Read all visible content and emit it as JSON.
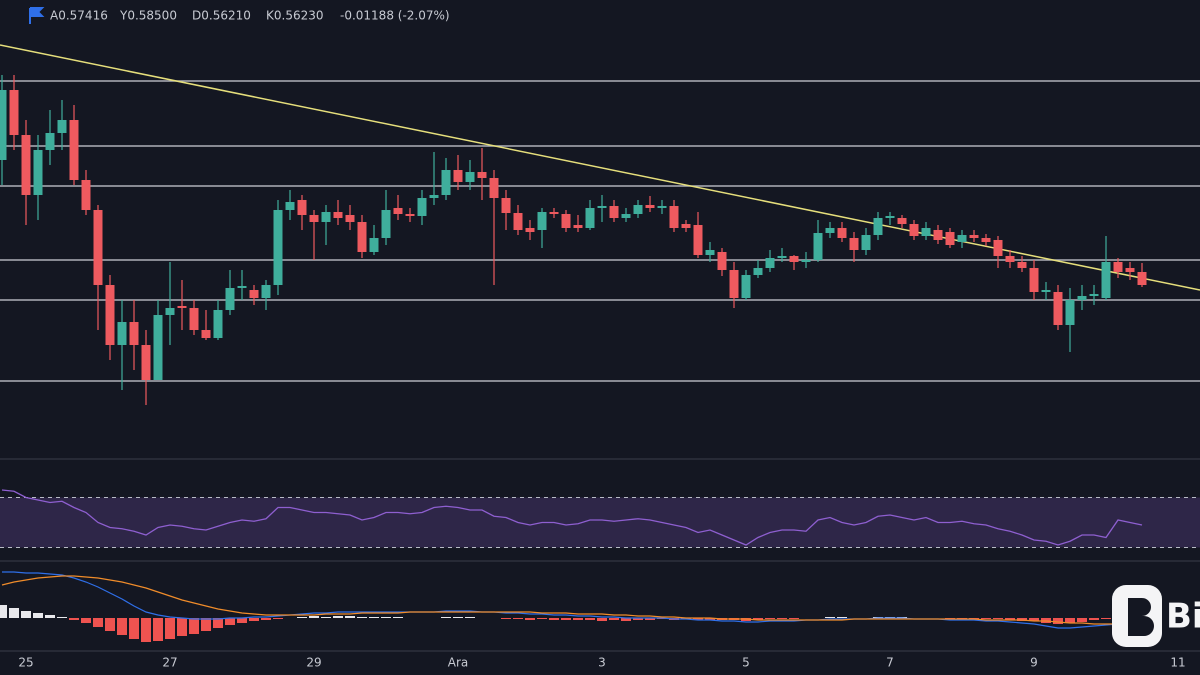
{
  "chart_data": [
    {
      "type": "candlestick",
      "header": [
        "A0.57416",
        "Y0.58500",
        "D0.56210",
        "K0.56230",
        "-0.01188 (-2.07%)"
      ],
      "watermark": "Bi",
      "categories": [
        null,
        null,
        "25",
        null,
        null,
        null,
        null,
        null,
        null,
        null,
        null,
        null,
        null,
        null,
        "27",
        null,
        null,
        null,
        null,
        null,
        null,
        null,
        null,
        null,
        null,
        null,
        "29",
        null,
        null,
        null,
        null,
        null,
        null,
        null,
        null,
        null,
        null,
        null,
        "Ara",
        null,
        null,
        null,
        null,
        null,
        null,
        null,
        null,
        null,
        null,
        null,
        "3",
        null,
        null,
        null,
        null,
        null,
        null,
        null,
        null,
        null,
        null,
        null,
        "5",
        null,
        null,
        null,
        null,
        null,
        null,
        null,
        null,
        null,
        null,
        null,
        "7",
        null,
        null,
        null,
        null,
        null,
        null,
        null,
        null,
        null,
        null,
        null,
        "9",
        null,
        null,
        null,
        null,
        null,
        null,
        null,
        null,
        null,
        null,
        null,
        "11"
      ],
      "open": [
        0.7,
        0.77,
        0.725,
        0.665,
        0.71,
        0.727,
        0.74,
        0.68,
        0.65,
        0.575,
        0.515,
        0.538,
        0.515,
        0.48,
        0.545,
        0.554,
        0.552,
        0.53,
        0.522,
        0.55,
        0.572,
        0.57,
        0.562,
        0.575,
        0.65,
        0.66,
        0.645,
        0.638,
        0.648,
        0.645,
        0.638,
        0.608,
        0.622,
        0.652,
        0.646,
        0.644,
        0.662,
        0.665,
        0.69,
        0.678,
        0.688,
        0.682,
        0.662,
        0.647,
        0.632,
        0.63,
        0.648,
        0.646,
        0.635,
        0.632,
        0.652,
        0.654,
        0.642,
        0.646,
        0.655,
        0.652,
        0.654,
        0.636,
        0.635,
        0.605,
        0.608,
        0.59,
        0.562,
        0.585,
        0.592,
        0.602,
        0.604,
        0.598,
        0.6,
        0.627,
        0.632,
        0.622,
        0.61,
        0.625,
        0.642,
        0.642,
        0.636,
        0.624,
        0.63,
        0.628,
        0.618,
        0.625,
        0.622,
        0.62,
        0.604,
        0.598,
        0.592,
        0.568,
        0.568,
        0.535,
        0.56,
        0.564,
        0.562,
        0.598,
        0.592,
        0.588,
        null,
        null,
        null
      ],
      "high": [
        0.785,
        0.785,
        0.74,
        0.725,
        0.75,
        0.76,
        0.755,
        0.69,
        0.655,
        0.585,
        0.56,
        0.56,
        0.53,
        0.56,
        0.598,
        0.58,
        0.56,
        0.55,
        0.56,
        0.59,
        0.59,
        0.575,
        0.58,
        0.66,
        0.67,
        0.665,
        0.65,
        0.655,
        0.66,
        0.655,
        0.645,
        0.635,
        0.67,
        0.665,
        0.652,
        0.67,
        0.708,
        0.702,
        0.705,
        0.7,
        0.712,
        0.69,
        0.67,
        0.655,
        0.64,
        0.652,
        0.652,
        0.65,
        0.645,
        0.66,
        0.665,
        0.66,
        0.652,
        0.66,
        0.664,
        0.66,
        0.66,
        0.64,
        0.648,
        0.618,
        0.612,
        0.598,
        0.59,
        0.6,
        0.61,
        0.612,
        0.605,
        0.608,
        0.64,
        0.638,
        0.638,
        0.628,
        0.632,
        0.648,
        0.648,
        0.645,
        0.64,
        0.638,
        0.635,
        0.632,
        0.63,
        0.63,
        0.626,
        0.624,
        0.61,
        0.604,
        0.6,
        0.578,
        0.575,
        0.572,
        0.575,
        0.575,
        0.624,
        0.602,
        0.598,
        0.597,
        null,
        null,
        null
      ],
      "low": [
        0.675,
        0.71,
        0.635,
        0.64,
        0.695,
        0.71,
        0.675,
        0.645,
        0.53,
        0.5,
        0.47,
        0.49,
        0.455,
        0.48,
        0.515,
        0.53,
        0.525,
        0.52,
        0.52,
        0.545,
        0.56,
        0.555,
        0.55,
        0.565,
        0.64,
        0.63,
        0.6,
        0.615,
        0.635,
        0.63,
        0.602,
        0.605,
        0.615,
        0.64,
        0.638,
        0.635,
        0.655,
        0.66,
        0.67,
        0.67,
        0.66,
        0.575,
        0.63,
        0.625,
        0.62,
        0.612,
        0.642,
        0.628,
        0.628,
        0.63,
        0.638,
        0.638,
        0.638,
        0.642,
        0.648,
        0.646,
        0.628,
        0.628,
        0.602,
        0.598,
        0.584,
        0.552,
        0.56,
        0.582,
        0.588,
        0.598,
        0.59,
        0.592,
        0.598,
        0.622,
        0.618,
        0.598,
        0.605,
        0.62,
        0.635,
        0.632,
        0.62,
        0.62,
        0.616,
        0.612,
        0.612,
        0.618,
        0.614,
        0.592,
        0.592,
        0.588,
        0.56,
        0.56,
        0.53,
        0.508,
        0.55,
        0.555,
        0.56,
        0.582,
        0.58,
        0.573,
        null,
        null,
        null
      ],
      "close": [
        0.77,
        0.725,
        0.665,
        0.71,
        0.727,
        0.74,
        0.68,
        0.65,
        0.575,
        0.515,
        0.538,
        0.515,
        0.48,
        0.545,
        0.552,
        0.552,
        0.53,
        0.522,
        0.55,
        0.572,
        0.574,
        0.562,
        0.575,
        0.65,
        0.658,
        0.645,
        0.638,
        0.648,
        0.642,
        0.638,
        0.608,
        0.622,
        0.65,
        0.646,
        0.644,
        0.662,
        0.665,
        0.69,
        0.678,
        0.688,
        0.682,
        0.662,
        0.647,
        0.63,
        0.628,
        0.648,
        0.646,
        0.632,
        0.632,
        0.652,
        0.654,
        0.642,
        0.646,
        0.655,
        0.652,
        0.654,
        0.632,
        0.632,
        0.605,
        0.61,
        0.59,
        0.562,
        0.585,
        0.592,
        0.602,
        0.604,
        0.598,
        0.6,
        0.627,
        0.632,
        0.622,
        0.61,
        0.625,
        0.642,
        0.644,
        0.636,
        0.624,
        0.632,
        0.62,
        0.615,
        0.625,
        0.622,
        0.618,
        0.604,
        0.598,
        0.592,
        0.568,
        0.57,
        0.535,
        0.56,
        0.564,
        0.566,
        0.598,
        0.588,
        0.588,
        0.575,
        null,
        null,
        null
      ],
      "up_color": "#3fae9c",
      "down_color": "#ee5a5f",
      "ylim": [
        0.4,
        0.86
      ],
      "levels": [
        0.779,
        0.714,
        0.674,
        0.6,
        0.56,
        0.479
      ],
      "level_color": "#c9ccd4",
      "trendline": [
        0.815,
        0.57
      ],
      "trendline_color": "#e6df7c"
    },
    {
      "type": "line",
      "values": [
        76,
        75,
        70,
        68,
        66,
        67,
        62,
        58,
        50,
        46,
        45,
        43,
        40,
        46,
        48,
        47,
        45,
        44,
        47,
        50,
        52,
        51,
        53,
        62,
        62,
        60,
        58,
        58,
        57,
        56,
        52,
        54,
        58,
        58,
        57,
        58,
        62,
        63,
        62,
        60,
        60,
        55,
        54,
        50,
        48,
        50,
        50,
        48,
        49,
        52,
        52,
        51,
        52,
        53,
        52,
        50,
        48,
        46,
        42,
        44,
        40,
        36,
        32,
        38,
        42,
        44,
        44,
        43,
        52,
        54,
        50,
        48,
        50,
        55,
        56,
        54,
        52,
        54,
        50,
        50,
        51,
        49,
        48,
        45,
        43,
        40,
        36,
        35,
        32,
        35,
        40,
        40,
        38,
        52,
        50,
        48
      ],
      "color": "#8e5fd0",
      "band": [
        30,
        70
      ],
      "ylim": [
        20,
        80
      ]
    },
    {
      "type": "macd",
      "histogram": [
        0.013,
        0.01,
        0.007,
        0.005,
        0.003,
        0.001,
        -0.002,
        -0.005,
        -0.009,
        -0.013,
        -0.017,
        -0.021,
        -0.024,
        -0.023,
        -0.021,
        -0.018,
        -0.016,
        -0.013,
        -0.01,
        -0.007,
        -0.005,
        -0.003,
        -0.002,
        -0.001,
        0,
        0.001,
        0.002,
        0.001,
        0.002,
        0.002,
        0.001,
        0.001,
        0.001,
        0.001,
        0,
        0,
        0,
        0.001,
        0.001,
        0.001,
        0,
        0,
        -0.001,
        -0.001,
        -0.002,
        -0.001,
        -0.002,
        -0.002,
        -0.002,
        -0.002,
        -0.003,
        -0.002,
        -0.003,
        -0.002,
        -0.002,
        -0.001,
        -0.002,
        -0.001,
        -0.002,
        -0.002,
        -0.002,
        -0.002,
        -0.003,
        -0.002,
        -0.001,
        -0.001,
        -0.001,
        0,
        0,
        0.001,
        0.001,
        0,
        0,
        0.001,
        0.001,
        0.001,
        0,
        0,
        0,
        -0.001,
        -0.001,
        -0.001,
        -0.001,
        -0.001,
        -0.002,
        -0.003,
        -0.003,
        -0.005,
        -0.006,
        -0.005,
        -0.004,
        -0.002,
        -0.001,
        0,
        0,
        -0.001
      ],
      "up_color": "#e8e8ec",
      "down_color": "#ef5350",
      "series": [
        {
          "color": "#2f6fe8",
          "values": [
            0.046,
            0.046,
            0.045,
            0.045,
            0.044,
            0.043,
            0.04,
            0.036,
            0.031,
            0.025,
            0.019,
            0.012,
            0.006,
            0.003,
            0.001,
            0,
            -0.001,
            -0.001,
            -0.001,
            0,
            0,
            0.001,
            0.001,
            0.002,
            0.003,
            0.004,
            0.005,
            0.005,
            0.006,
            0.006,
            0.006,
            0.006,
            0.006,
            0.006,
            0.006,
            0.006,
            0.006,
            0.007,
            0.007,
            0.007,
            0.006,
            0.006,
            0.005,
            0.005,
            0.004,
            0.004,
            0.003,
            0.003,
            0.002,
            0.002,
            0.001,
            0.001,
            0,
            0,
            0,
            0,
            -0.001,
            -0.001,
            -0.002,
            -0.002,
            -0.003,
            -0.003,
            -0.004,
            -0.004,
            -0.003,
            -0.003,
            -0.003,
            -0.002,
            -0.002,
            -0.001,
            -0.001,
            -0.001,
            -0.001,
            0,
            0,
            0,
            -0.001,
            -0.001,
            -0.001,
            -0.002,
            -0.002,
            -0.002,
            -0.003,
            -0.003,
            -0.004,
            -0.005,
            -0.006,
            -0.008,
            -0.01,
            -0.01,
            -0.009,
            -0.008,
            -0.007,
            -0.006,
            -0.006,
            -0.007
          ]
        },
        {
          "color": "#f08c2a",
          "values": [
            0.033,
            0.036,
            0.038,
            0.04,
            0.041,
            0.042,
            0.042,
            0.041,
            0.04,
            0.038,
            0.036,
            0.033,
            0.03,
            0.026,
            0.022,
            0.018,
            0.015,
            0.012,
            0.009,
            0.007,
            0.005,
            0.004,
            0.003,
            0.003,
            0.003,
            0.003,
            0.003,
            0.004,
            0.004,
            0.004,
            0.005,
            0.005,
            0.005,
            0.005,
            0.006,
            0.006,
            0.006,
            0.006,
            0.006,
            0.006,
            0.006,
            0.006,
            0.006,
            0.006,
            0.006,
            0.005,
            0.005,
            0.005,
            0.004,
            0.004,
            0.004,
            0.003,
            0.003,
            0.002,
            0.002,
            0.001,
            0.001,
            0,
            0,
            0,
            -0.001,
            -0.001,
            -0.001,
            -0.002,
            -0.002,
            -0.002,
            -0.002,
            -0.002,
            -0.002,
            -0.002,
            -0.002,
            -0.001,
            -0.001,
            -0.001,
            -0.001,
            -0.001,
            -0.001,
            -0.001,
            -0.001,
            -0.001,
            -0.001,
            -0.001,
            -0.002,
            -0.002,
            -0.002,
            -0.002,
            -0.003,
            -0.003,
            -0.004,
            -0.005,
            -0.005,
            -0.006,
            -0.006,
            -0.006,
            -0.006,
            -0.006
          ]
        }
      ],
      "ylim": [
        -0.032,
        0.053
      ]
    }
  ]
}
